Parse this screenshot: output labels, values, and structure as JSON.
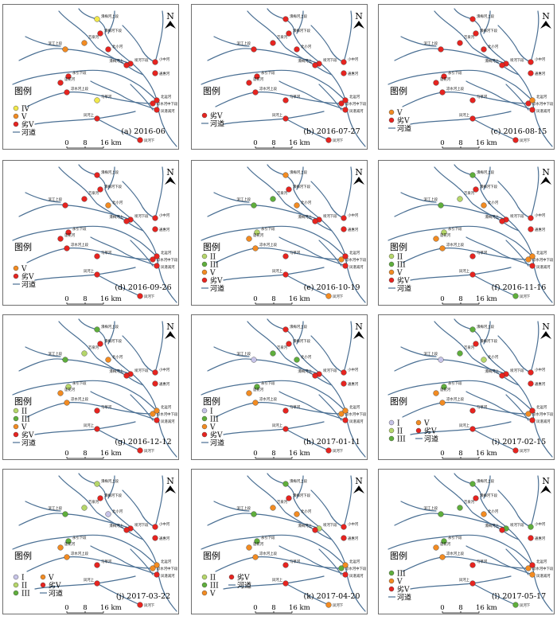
{
  "colors": {
    "river": "#4a6f93",
    "frame": "#6f6f6f",
    "grade": {
      "I": "#c7c4e8",
      "II": "#b5d66a",
      "III": "#5fae3c",
      "IV": "#f1e84b",
      "V": "#f28b22",
      "worse_V": "#e62420"
    }
  },
  "common": {
    "north_label": "N",
    "legend_title": "图例",
    "river_label": "河道",
    "scale_ticks": [
      "0",
      "8",
      "16 km"
    ]
  },
  "grade_labels": {
    "I": "I",
    "II": "II",
    "III": "III",
    "IV": "IV",
    "V": "V",
    "worse_V": "劣V"
  },
  "station_names": [
    "濠梅河上段",
    "滨江上段",
    "万泉河",
    "濠梅河下段",
    "北小河",
    "坝河下段",
    "小中河",
    "凉水河中下段",
    "通惠河",
    "濠梅河上",
    "永引下段",
    "莲花河",
    "凉水河上段",
    "马草河",
    "北运河",
    "凤港减河",
    "凤河上",
    "凤河下"
  ],
  "panels": [
    {
      "caption": "(a) 2016-06",
      "legend": [
        "IV",
        "V",
        "worse_V"
      ],
      "legend_cols": 1,
      "stations": [
        "IV",
        "V",
        "V",
        "worse_V",
        "worse_V",
        "worse_V",
        "worse_V",
        "worse_V",
        "worse_V",
        "worse_V",
        "worse_V",
        "worse_V",
        "worse_V",
        "IV",
        "worse_V",
        "worse_V",
        "worse_V",
        "worse_V"
      ]
    },
    {
      "caption": "(b) 2016-07-27",
      "legend": [
        "worse_V"
      ],
      "legend_cols": 1,
      "stations": [
        "worse_V",
        "worse_V",
        "worse_V",
        "worse_V",
        "worse_V",
        "worse_V",
        "worse_V",
        "worse_V",
        "worse_V",
        "worse_V",
        "worse_V",
        "worse_V",
        "worse_V",
        "worse_V",
        "worse_V",
        "worse_V",
        "worse_V",
        "worse_V"
      ]
    },
    {
      "caption": "(c) 2016-08-15",
      "legend": [
        "V",
        "worse_V"
      ],
      "legend_cols": 1,
      "stations": [
        "worse_V",
        "worse_V",
        "worse_V",
        "worse_V",
        "worse_V",
        "worse_V",
        "worse_V",
        "worse_V",
        "worse_V",
        "worse_V",
        "worse_V",
        "worse_V",
        "worse_V",
        "worse_V",
        "V",
        "worse_V",
        "worse_V",
        "worse_V"
      ]
    },
    {
      "caption": "(d) 2016-09-26",
      "legend": [
        "V",
        "worse_V"
      ],
      "legend_cols": 1,
      "stations": [
        "worse_V",
        "worse_V",
        "worse_V",
        "worse_V",
        "V",
        "worse_V",
        "worse_V",
        "worse_V",
        "worse_V",
        "worse_V",
        "worse_V",
        "worse_V",
        "worse_V",
        "worse_V",
        "worse_V",
        "worse_V",
        "worse_V",
        "worse_V"
      ]
    },
    {
      "caption": "(e) 2016-10-19",
      "legend": [
        "II",
        "III",
        "V",
        "worse_V"
      ],
      "legend_cols": 1,
      "stations": [
        "V",
        "III",
        "III",
        "worse_V",
        "V",
        "worse_V",
        "worse_V",
        "V",
        "worse_V",
        "worse_V",
        "II",
        "V",
        "V",
        "worse_V",
        "worse_V",
        "worse_V",
        "worse_V",
        "V"
      ]
    },
    {
      "caption": "(f) 2016-11-16",
      "legend": [
        "II",
        "III",
        "V",
        "worse_V"
      ],
      "legend_cols": 1,
      "stations": [
        "III",
        "III",
        "II",
        "worse_V",
        "V",
        "worse_V",
        "worse_V",
        "V",
        "worse_V",
        "worse_V",
        "II",
        "V",
        "V",
        "worse_V",
        "V",
        "worse_V",
        "worse_V",
        "III"
      ]
    },
    {
      "caption": "(g) 2016-12-12",
      "legend": [
        "II",
        "III",
        "V",
        "worse_V"
      ],
      "legend_cols": 1,
      "stations": [
        "III",
        "III",
        "II",
        "worse_V",
        "V",
        "worse_V",
        "worse_V",
        "V",
        "worse_V",
        "worse_V",
        "II",
        "V",
        "V",
        "worse_V",
        "V",
        "worse_V",
        "worse_V",
        "worse_V"
      ]
    },
    {
      "caption": "(h) 2017-01-11",
      "legend": [
        "I",
        "III",
        "V",
        "worse_V"
      ],
      "legend_cols": 1,
      "stations": [
        "worse_V",
        "I",
        "III",
        "worse_V",
        "III",
        "worse_V",
        "worse_V",
        "V",
        "worse_V",
        "worse_V",
        "III",
        "V",
        "V",
        "worse_V",
        "V",
        "worse_V",
        "worse_V",
        "worse_V"
      ]
    },
    {
      "caption": "(i) 2017-02-15",
      "legend": [
        "I",
        "II",
        "III",
        "V",
        "worse_V"
      ],
      "legend_cols": 2,
      "stations": [
        "III",
        "I",
        "III",
        "worse_V",
        "II",
        "worse_V",
        "worse_V",
        "V",
        "worse_V",
        "worse_V",
        "III",
        "V",
        "V",
        "worse_V",
        "worse_V",
        "worse_V",
        "worse_V",
        "worse_V"
      ]
    },
    {
      "caption": "(j) 2017-03-22",
      "legend": [
        "I",
        "II",
        "III",
        "V",
        "worse_V"
      ],
      "legend_cols": 2,
      "stations": [
        "II",
        "III",
        "II",
        "worse_V",
        "I",
        "worse_V",
        "worse_V",
        "V",
        "worse_V",
        "worse_V",
        "III",
        "V",
        "V",
        "worse_V",
        "V",
        "worse_V",
        "worse_V",
        "worse_V"
      ]
    },
    {
      "caption": "(k) 2017-04-20",
      "legend": [
        "II",
        "III",
        "V",
        "worse_V"
      ],
      "legend_cols": 2,
      "stations": [
        "III",
        "III",
        "V",
        "worse_V",
        "V",
        "II",
        "worse_V",
        "III",
        "worse_V",
        "worse_V",
        "III",
        "V",
        "V",
        "worse_V",
        "V",
        "worse_V",
        "worse_V",
        "V"
      ]
    },
    {
      "caption": "(l) 2017-05-17",
      "legend": [
        "III",
        "V",
        "worse_V"
      ],
      "legend_cols": 1,
      "stations": [
        "III",
        "III",
        "III",
        "worse_V",
        "V",
        "III",
        "III",
        "V",
        "worse_V",
        "worse_V",
        "III",
        "V",
        "V",
        "worse_V",
        "worse_V",
        "V",
        "worse_V",
        "III"
      ]
    }
  ]
}
